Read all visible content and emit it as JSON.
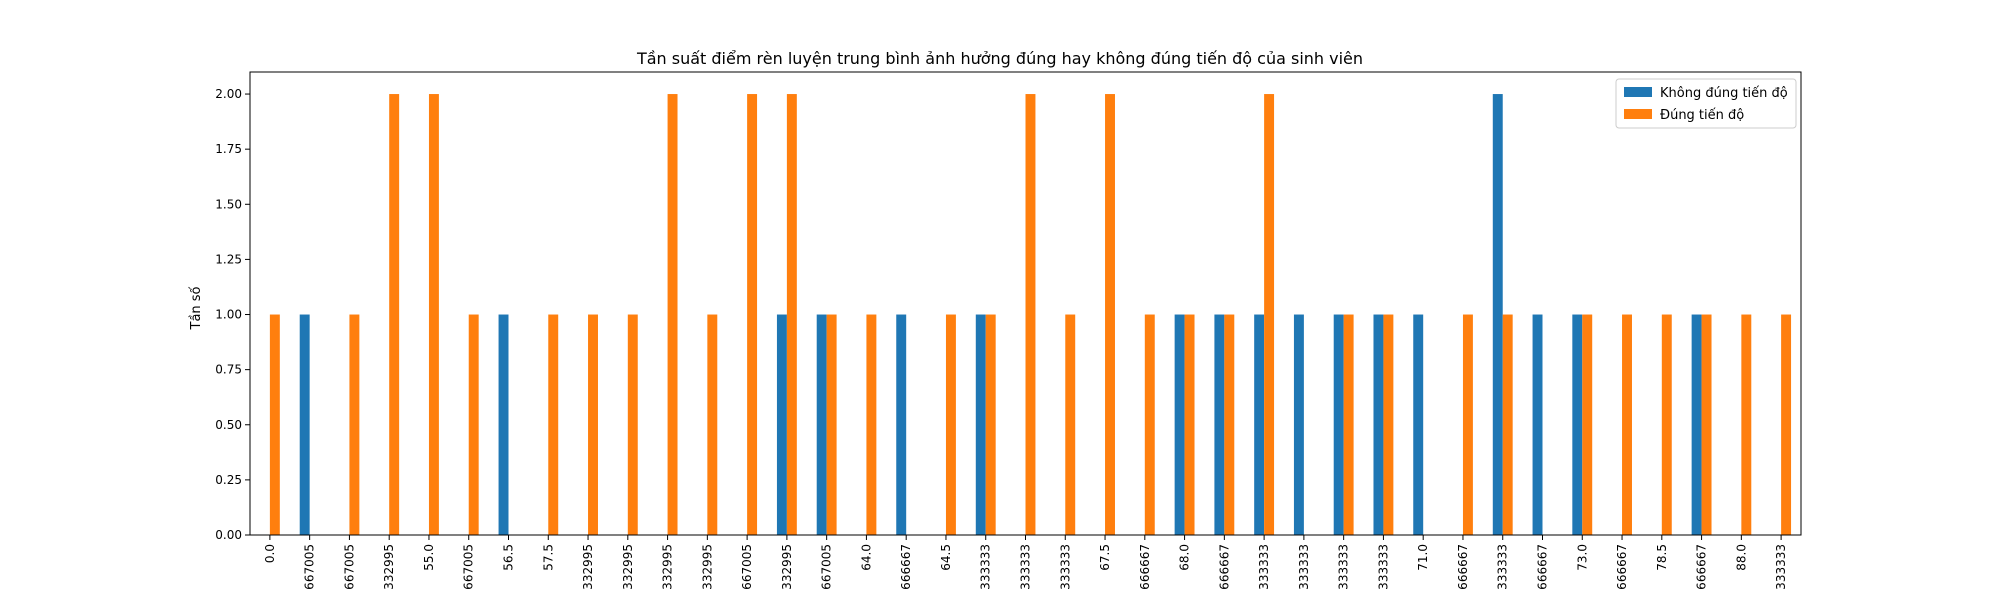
{
  "chart_data": {
    "type": "bar",
    "title": "Tần suất điểm rèn luyện trung bình ảnh hưởng đúng hay không đúng tiến độ của sinh viên",
    "xlabel": "",
    "ylabel": "Tần số",
    "ylim": [
      0,
      2.1
    ],
    "yticks": [
      "0.00",
      "0.25",
      "0.50",
      "0.75",
      "1.00",
      "1.25",
      "1.50",
      "1.75",
      "2.00"
    ],
    "grid": false,
    "legend_position": "top-right",
    "categories": [
      "0.0",
      "667005",
      "667005",
      "332995",
      "55.0",
      "667005",
      "56.5",
      "57.5",
      "332995",
      "332995",
      "332995",
      "332995",
      "667005",
      "332995",
      "667005",
      "64.0",
      "666667",
      "64.5",
      "333333",
      "333333",
      "333333",
      "67.5",
      "666667",
      "68.0",
      "666667",
      "333333",
      "333333",
      "333333",
      "333333",
      "71.0",
      "666667",
      "333333",
      "666667",
      "73.0",
      "666667",
      "78.5",
      "666667",
      "88.0",
      "333333"
    ],
    "series": [
      {
        "name": "Không đúng tiến độ",
        "color": "#1f77b4",
        "values": [
          0,
          1,
          0,
          0,
          0,
          0,
          1,
          0,
          0,
          0,
          0,
          0,
          0,
          1,
          1,
          0,
          1,
          0,
          1,
          0,
          0,
          0,
          0,
          1,
          1,
          1,
          1,
          1,
          1,
          1,
          0,
          2,
          1,
          1,
          0,
          0,
          1,
          0,
          0
        ]
      },
      {
        "name": "Đúng tiến độ",
        "color": "#ff7f0e",
        "values": [
          1,
          0,
          1,
          2,
          2,
          1,
          0,
          1,
          1,
          1,
          2,
          1,
          2,
          2,
          1,
          1,
          0,
          1,
          1,
          2,
          1,
          2,
          1,
          1,
          1,
          2,
          0,
          1,
          1,
          0,
          1,
          1,
          0,
          1,
          1,
          1,
          1,
          1,
          1
        ]
      }
    ]
  }
}
